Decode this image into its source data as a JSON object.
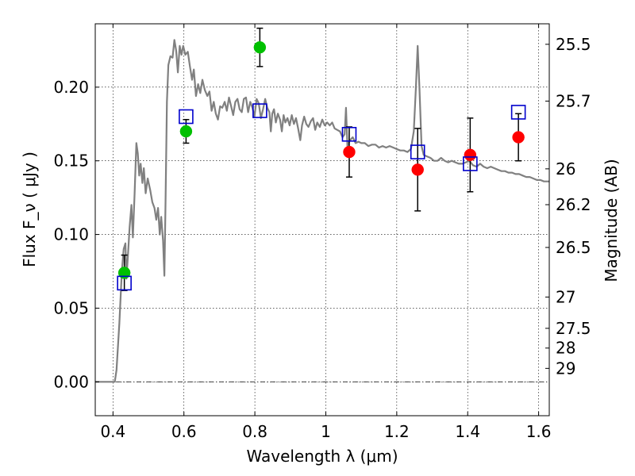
{
  "chart_data": {
    "type": "scatter",
    "title": "",
    "xlabel": "Wavelength  λ (μm)",
    "ylabel": "Flux  F_ν  ( μJy )",
    "ylabel_right": "Magnitude (AB)",
    "xlim": [
      0.35,
      1.63
    ],
    "ylim": [
      -0.023,
      0.243
    ],
    "x_ticks": [
      0.4,
      0.6,
      0.8,
      1.0,
      1.2,
      1.4,
      1.6
    ],
    "x_tick_labels": [
      "0.4",
      "0.6",
      "0.8",
      "1",
      "1.2",
      "1.4",
      "1.6"
    ],
    "y_ticks": [
      0.0,
      0.05,
      0.1,
      0.15,
      0.2
    ],
    "y_tick_labels": [
      "0.00",
      "0.05",
      "0.10",
      "0.15",
      "0.20"
    ],
    "magnitude_ticks": [
      "25.5",
      "25.7",
      "26",
      "26.2",
      "26.5",
      "27",
      "27.5",
      "28",
      "29"
    ],
    "grid": true,
    "series": [
      {
        "marker": "circle",
        "color": "#00c000",
        "points": [
          {
            "x": 0.432,
            "y": 0.074,
            "err": 0.012
          },
          {
            "x": 0.606,
            "y": 0.17,
            "err": 0.008
          },
          {
            "x": 0.814,
            "y": 0.227,
            "err": 0.013
          }
        ]
      },
      {
        "marker": "circle",
        "color": "#ff0000",
        "points": [
          {
            "x": 1.066,
            "y": 0.156,
            "err": 0.017
          },
          {
            "x": 1.259,
            "y": 0.144,
            "err": 0.028
          },
          {
            "x": 1.407,
            "y": 0.154,
            "err": 0.025
          },
          {
            "x": 1.543,
            "y": 0.166,
            "err": 0.016
          }
        ]
      },
      {
        "marker": "open-square",
        "color": "#0000cc",
        "points": [
          {
            "x": 0.432,
            "y": 0.067
          },
          {
            "x": 0.606,
            "y": 0.18
          },
          {
            "x": 0.814,
            "y": 0.184
          },
          {
            "x": 1.066,
            "y": 0.168
          },
          {
            "x": 1.259,
            "y": 0.156
          },
          {
            "x": 1.407,
            "y": 0.148
          },
          {
            "x": 1.543,
            "y": 0.183
          }
        ]
      },
      {
        "marker": "line",
        "color": "#808080",
        "points": [
          [
            0.35,
            0.0
          ],
          [
            0.39,
            0.0
          ],
          [
            0.405,
            0.0
          ],
          [
            0.41,
            0.008
          ],
          [
            0.418,
            0.04
          ],
          [
            0.425,
            0.075
          ],
          [
            0.43,
            0.09
          ],
          [
            0.435,
            0.094
          ],
          [
            0.438,
            0.07
          ],
          [
            0.442,
            0.085
          ],
          [
            0.447,
            0.105
          ],
          [
            0.452,
            0.12
          ],
          [
            0.456,
            0.098
          ],
          [
            0.461,
            0.128
          ],
          [
            0.466,
            0.162
          ],
          [
            0.47,
            0.155
          ],
          [
            0.474,
            0.14
          ],
          [
            0.478,
            0.148
          ],
          [
            0.483,
            0.135
          ],
          [
            0.487,
            0.145
          ],
          [
            0.492,
            0.128
          ],
          [
            0.498,
            0.138
          ],
          [
            0.505,
            0.13
          ],
          [
            0.511,
            0.122
          ],
          [
            0.517,
            0.118
          ],
          [
            0.522,
            0.11
          ],
          [
            0.527,
            0.118
          ],
          [
            0.532,
            0.1
          ],
          [
            0.536,
            0.112
          ],
          [
            0.541,
            0.096
          ],
          [
            0.545,
            0.072
          ],
          [
            0.548,
            0.12
          ],
          [
            0.552,
            0.19
          ],
          [
            0.556,
            0.215
          ],
          [
            0.562,
            0.221
          ],
          [
            0.568,
            0.22
          ],
          [
            0.573,
            0.232
          ],
          [
            0.578,
            0.225
          ],
          [
            0.583,
            0.21
          ],
          [
            0.588,
            0.228
          ],
          [
            0.593,
            0.222
          ],
          [
            0.598,
            0.228
          ],
          [
            0.604,
            0.222
          ],
          [
            0.611,
            0.224
          ],
          [
            0.617,
            0.214
          ],
          [
            0.623,
            0.205
          ],
          [
            0.628,
            0.212
          ],
          [
            0.634,
            0.194
          ],
          [
            0.64,
            0.202
          ],
          [
            0.646,
            0.196
          ],
          [
            0.652,
            0.205
          ],
          [
            0.659,
            0.198
          ],
          [
            0.666,
            0.194
          ],
          [
            0.672,
            0.197
          ],
          [
            0.678,
            0.184
          ],
          [
            0.684,
            0.19
          ],
          [
            0.69,
            0.182
          ],
          [
            0.696,
            0.178
          ],
          [
            0.702,
            0.187
          ],
          [
            0.708,
            0.186
          ],
          [
            0.715,
            0.19
          ],
          [
            0.721,
            0.184
          ],
          [
            0.727,
            0.193
          ],
          [
            0.733,
            0.187
          ],
          [
            0.739,
            0.181
          ],
          [
            0.745,
            0.19
          ],
          [
            0.751,
            0.192
          ],
          [
            0.757,
            0.185
          ],
          [
            0.763,
            0.183
          ],
          [
            0.769,
            0.192
          ],
          [
            0.775,
            0.193
          ],
          [
            0.781,
            0.183
          ],
          [
            0.787,
            0.19
          ],
          [
            0.793,
            0.186
          ],
          [
            0.799,
            0.18
          ],
          [
            0.805,
            0.192
          ],
          [
            0.811,
            0.189
          ],
          [
            0.817,
            0.179
          ],
          [
            0.823,
            0.185
          ],
          [
            0.829,
            0.192
          ],
          [
            0.835,
            0.186
          ],
          [
            0.841,
            0.183
          ],
          [
            0.845,
            0.17
          ],
          [
            0.849,
            0.182
          ],
          [
            0.854,
            0.185
          ],
          [
            0.859,
            0.176
          ],
          [
            0.865,
            0.182
          ],
          [
            0.871,
            0.178
          ],
          [
            0.876,
            0.17
          ],
          [
            0.881,
            0.181
          ],
          [
            0.886,
            0.176
          ],
          [
            0.892,
            0.179
          ],
          [
            0.898,
            0.174
          ],
          [
            0.904,
            0.181
          ],
          [
            0.91,
            0.175
          ],
          [
            0.916,
            0.179
          ],
          [
            0.922,
            0.172
          ],
          [
            0.928,
            0.164
          ],
          [
            0.933,
            0.174
          ],
          [
            0.939,
            0.18
          ],
          [
            0.945,
            0.175
          ],
          [
            0.951,
            0.173
          ],
          [
            0.958,
            0.177
          ],
          [
            0.964,
            0.179
          ],
          [
            0.97,
            0.171
          ],
          [
            0.976,
            0.176
          ],
          [
            0.983,
            0.173
          ],
          [
            0.99,
            0.178
          ],
          [
            0.997,
            0.174
          ],
          [
            1.004,
            0.176
          ],
          [
            1.011,
            0.174
          ],
          [
            1.018,
            0.176
          ],
          [
            1.025,
            0.172
          ],
          [
            1.032,
            0.171
          ],
          [
            1.04,
            0.17
          ],
          [
            1.047,
            0.166
          ],
          [
            1.053,
            0.168
          ],
          [
            1.057,
            0.186
          ],
          [
            1.061,
            0.16
          ],
          [
            1.068,
            0.164
          ],
          [
            1.076,
            0.166
          ],
          [
            1.084,
            0.162
          ],
          [
            1.092,
            0.163
          ],
          [
            1.1,
            0.162
          ],
          [
            1.11,
            0.162
          ],
          [
            1.12,
            0.16
          ],
          [
            1.13,
            0.161
          ],
          [
            1.14,
            0.161
          ],
          [
            1.15,
            0.159
          ],
          [
            1.16,
            0.16
          ],
          [
            1.17,
            0.159
          ],
          [
            1.18,
            0.16
          ],
          [
            1.19,
            0.159
          ],
          [
            1.2,
            0.158
          ],
          [
            1.21,
            0.157
          ],
          [
            1.22,
            0.157
          ],
          [
            1.23,
            0.156
          ],
          [
            1.24,
            0.158
          ],
          [
            1.248,
            0.17
          ],
          [
            1.254,
            0.2
          ],
          [
            1.259,
            0.228
          ],
          [
            1.264,
            0.2
          ],
          [
            1.27,
            0.16
          ],
          [
            1.276,
            0.154
          ],
          [
            1.285,
            0.153
          ],
          [
            1.295,
            0.152
          ],
          [
            1.305,
            0.15
          ],
          [
            1.315,
            0.15
          ],
          [
            1.325,
            0.152
          ],
          [
            1.335,
            0.15
          ],
          [
            1.345,
            0.149
          ],
          [
            1.355,
            0.15
          ],
          [
            1.365,
            0.149
          ],
          [
            1.375,
            0.148
          ],
          [
            1.385,
            0.148
          ],
          [
            1.395,
            0.149
          ],
          [
            1.405,
            0.15
          ],
          [
            1.415,
            0.147
          ],
          [
            1.425,
            0.146
          ],
          [
            1.435,
            0.148
          ],
          [
            1.445,
            0.146
          ],
          [
            1.455,
            0.145
          ],
          [
            1.465,
            0.146
          ],
          [
            1.475,
            0.145
          ],
          [
            1.485,
            0.144
          ],
          [
            1.495,
            0.143
          ],
          [
            1.505,
            0.143
          ],
          [
            1.515,
            0.142
          ],
          [
            1.525,
            0.142
          ],
          [
            1.535,
            0.141
          ],
          [
            1.545,
            0.141
          ],
          [
            1.555,
            0.14
          ],
          [
            1.565,
            0.139
          ],
          [
            1.575,
            0.139
          ],
          [
            1.585,
            0.138
          ],
          [
            1.595,
            0.137
          ],
          [
            1.605,
            0.137
          ],
          [
            1.615,
            0.136
          ],
          [
            1.63,
            0.136
          ]
        ]
      }
    ]
  }
}
